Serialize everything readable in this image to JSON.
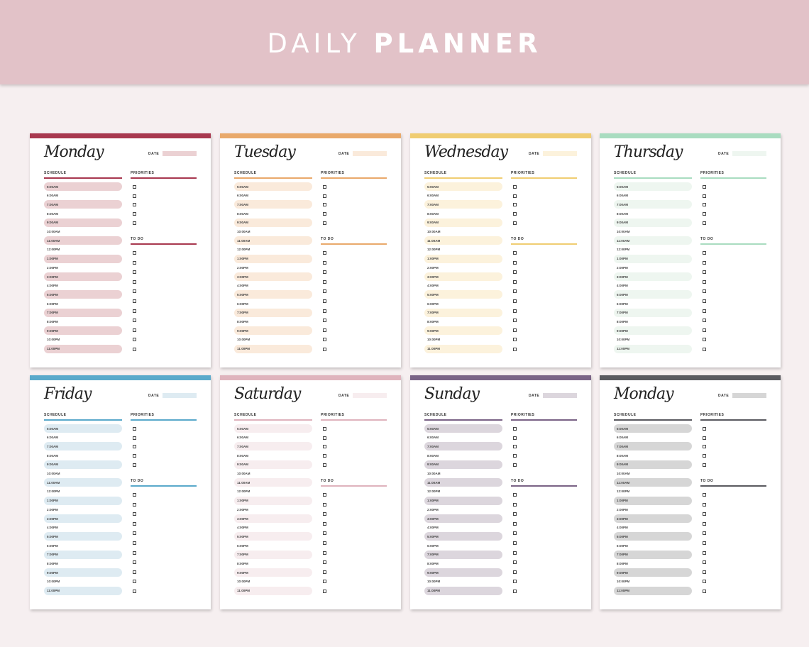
{
  "header": {
    "title_light": "DAILY",
    "title_bold": "PLANNER"
  },
  "labels": {
    "date": "DATE",
    "schedule": "SCHEDULE",
    "priorities": "PRIORITIES",
    "todo": "TO DO"
  },
  "times": [
    "5:00AM",
    "6:00AM",
    "7:00AM",
    "8:00AM",
    "9:00AM",
    "10:00AM",
    "11:00AM",
    "12:00PM",
    "1:00PM",
    "2:00PM",
    "3:00PM",
    "4:00PM",
    "5:00PM",
    "6:00PM",
    "7:00PM",
    "8:00PM",
    "9:00PM",
    "10:00PM",
    "11:00PM"
  ],
  "priority_checkbox_count": 5,
  "todo_checkbox_count": 11,
  "pages": [
    {
      "day": "Monday",
      "accent": "#a8384f",
      "tint": "#ebd1d3"
    },
    {
      "day": "Tuesday",
      "accent": "#e9a96b",
      "tint": "#faeadb"
    },
    {
      "day": "Wednesday",
      "accent": "#f0cd72",
      "tint": "#fcf2dc"
    },
    {
      "day": "Thursday",
      "accent": "#a9dcc0",
      "tint": "#eef6f0"
    },
    {
      "day": "Friday",
      "accent": "#5aa9cb",
      "tint": "#deebf2"
    },
    {
      "day": "Saturday",
      "accent": "#dfb3bd",
      "tint": "#f7edef"
    },
    {
      "day": "Sunday",
      "accent": "#7a6386",
      "tint": "#dcd6dd"
    },
    {
      "day": "Monday",
      "accent": "#5a5a60",
      "tint": "#d6d6d6"
    }
  ]
}
